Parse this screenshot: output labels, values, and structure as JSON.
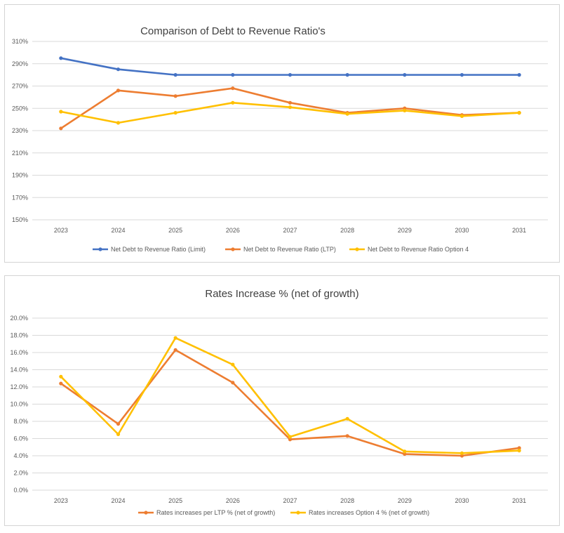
{
  "chart_data": [
    {
      "type": "line",
      "title": "Comparison of Debt to Revenue Ratio's",
      "xlabel": "",
      "ylabel": "",
      "categories": [
        "2023",
        "2024",
        "2025",
        "2026",
        "2027",
        "2028",
        "2029",
        "2030",
        "2031"
      ],
      "ylim": [
        150,
        310
      ],
      "yticks": [
        "150%",
        "170%",
        "190%",
        "210%",
        "230%",
        "250%",
        "270%",
        "290%",
        "310%"
      ],
      "ytick_values": [
        150,
        170,
        190,
        210,
        230,
        250,
        270,
        290,
        310
      ],
      "grid": true,
      "legend_position": "bottom",
      "series": [
        {
          "name": "Net Debt to Revenue Ratio (Limit)",
          "color": "#4472c4",
          "values": [
            295,
            285,
            280,
            280,
            280,
            280,
            280,
            280,
            280
          ]
        },
        {
          "name": "Net Debt to Revenue Ratio (LTP)",
          "color": "#ed7d31",
          "values": [
            232,
            266,
            261,
            268,
            255,
            246,
            250,
            244,
            246
          ]
        },
        {
          "name": "Net Debt to Revenue Ratio Option 4",
          "color": "#ffc000",
          "values": [
            247,
            237,
            246,
            255,
            251,
            245,
            248,
            243,
            246
          ]
        }
      ]
    },
    {
      "type": "line",
      "title": "Rates Increase % (net of growth)",
      "xlabel": "",
      "ylabel": "",
      "categories": [
        "2023",
        "2024",
        "2025",
        "2026",
        "2027",
        "2028",
        "2029",
        "2030",
        "2031"
      ],
      "ylim": [
        0,
        20
      ],
      "yticks": [
        "0.0%",
        "2.0%",
        "4.0%",
        "6.0%",
        "8.0%",
        "10.0%",
        "12.0%",
        "14.0%",
        "16.0%",
        "18.0%",
        "20.0%"
      ],
      "ytick_values": [
        0,
        2,
        4,
        6,
        8,
        10,
        12,
        14,
        16,
        18,
        20
      ],
      "grid": true,
      "legend_position": "bottom",
      "series": [
        {
          "name": "Rates increases per LTP % (net of growth)",
          "color": "#ed7d31",
          "values": [
            12.4,
            7.7,
            16.3,
            12.5,
            5.9,
            6.3,
            4.2,
            4.0,
            4.9
          ]
        },
        {
          "name": "Rates increases Option 4 % (net of growth)",
          "color": "#ffc000",
          "values": [
            13.2,
            6.5,
            17.7,
            14.6,
            6.2,
            8.3,
            4.5,
            4.3,
            4.6
          ]
        }
      ]
    }
  ]
}
